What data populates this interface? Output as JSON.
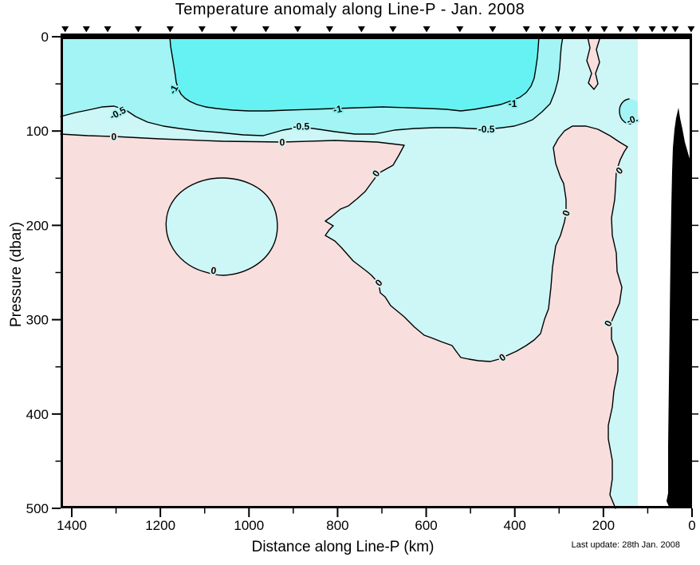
{
  "title": "Temperature anomaly along Line-P - Jan. 2008",
  "footnote": "Last update: 28th Jan. 2008",
  "axes": {
    "x": {
      "label": "Distance along Line-P (km)",
      "major_ticks": [
        1400,
        1200,
        1000,
        800,
        600,
        400,
        200,
        0
      ],
      "minor_ticks": [
        1300,
        1100,
        900,
        700,
        500,
        300,
        100
      ],
      "range": [
        1425,
        0
      ],
      "direction": "reversed"
    },
    "y": {
      "label": "Pressure (dbar)",
      "major_ticks": [
        0,
        100,
        200,
        300,
        400,
        500
      ],
      "minor_ticks": [
        50,
        150,
        250,
        350,
        450
      ],
      "range": [
        0,
        500
      ],
      "direction": "increasing downward"
    },
    "y_right": {
      "minor_ticks": [
        50,
        100,
        150,
        200,
        250,
        300,
        350,
        400,
        450
      ]
    }
  },
  "stations": {
    "marker": "filled-down-triangle",
    "positions_km": [
      1415,
      1367,
      1319,
      1250,
      1178,
      1106,
      1034,
      962,
      890,
      818,
      746,
      675,
      599,
      524,
      450,
      374,
      338,
      302,
      270,
      234,
      198,
      162,
      126,
      90,
      63,
      38,
      2
    ]
  },
  "chart_data": {
    "type": "contour",
    "title": "Temperature anomaly along Line-P - Jan. 2008",
    "xlabel": "Distance along Line-P (km)",
    "ylabel": "Pressure (dbar)",
    "xlim": [
      1425,
      0
    ],
    "ylim": [
      500,
      0
    ],
    "grid": false,
    "contour_levels": [
      -1,
      -0.5,
      0
    ],
    "fill_bands": [
      {
        "range": "anomaly < -1",
        "color": "#66F2F2",
        "description": "cold core in upper ~75 dbar between ~1180 km and ~345 km"
      },
      {
        "range": "-1 to -0.5",
        "color": "#A3F4F4",
        "description": "band around cold core; reaches surface from 1425-1180 km and 345-290 km; small lens at ~135 km / 70-95 dbar"
      },
      {
        "range": "-0.5 to 0",
        "color": "#CDF6F6",
        "description": "pale cool layer ~80-110 dbar along whole section; mid-depth pool ~830-320 km down to ~345 dbar; eddy at ~1080 km / 195-255 dbar; nearshore strip ~160-120 km full depth"
      },
      {
        "range": "anomaly > 0",
        "color": "#F9DEDE",
        "description": "warm anomaly below ~110 dbar over most of the section; warm column ~310-150 km from ~100 dbar to bottom; warm surface finger at ~235 km / 0-55 dbar"
      }
    ],
    "contour_labels": [
      {
        "text": "-1",
        "km": 1170,
        "dbar": 56,
        "rot": -62,
        "halo": "#80F2F2"
      },
      {
        "text": "-0.5",
        "km": 1296,
        "dbar": 81,
        "rot": -28,
        "halo": "#AEF4F4"
      },
      {
        "text": "0",
        "km": 1305,
        "dbar": 106,
        "rot": 0,
        "halo": "#DCEDEA"
      },
      {
        "text": "-1",
        "km": 800,
        "dbar": 77,
        "rot": -12,
        "halo": "#80F2F2"
      },
      {
        "text": "-0.5",
        "km": 882,
        "dbar": 95,
        "rot": 0,
        "halo": "#B5F5F5"
      },
      {
        "text": "0",
        "km": 925,
        "dbar": 112,
        "rot": 0,
        "halo": "#DCEDEA"
      },
      {
        "text": "-1",
        "km": 405,
        "dbar": 71,
        "rot": 0,
        "halo": "#80F2F2"
      },
      {
        "text": "-0.5",
        "km": 464,
        "dbar": 98,
        "rot": 0,
        "halo": "#B5F5F5"
      },
      {
        "text": "0",
        "km": 713,
        "dbar": 145,
        "rot": -55,
        "halo": "#DCEDEA"
      },
      {
        "text": "0",
        "km": 1080,
        "dbar": 248,
        "rot": 8,
        "halo": "#DCEDEA"
      },
      {
        "text": "0",
        "km": 707,
        "dbar": 261,
        "rot": -48,
        "halo": "#DCEDEA"
      },
      {
        "text": "0",
        "km": 428,
        "dbar": 340,
        "rot": -35,
        "halo": "#DCEDEA"
      },
      {
        "text": "0",
        "km": 284,
        "dbar": 187,
        "rot": -68,
        "halo": "#DCEDEA"
      },
      {
        "text": "0",
        "km": 164,
        "dbar": 142,
        "rot": -45,
        "halo": "#DCEDEA"
      },
      {
        "text": "0",
        "km": 189,
        "dbar": 304,
        "rot": -65,
        "halo": "#DCEDEA"
      },
      {
        "text": "-0.",
        "km": 135,
        "dbar": 88,
        "rot": -20,
        "halo": "#B5F5F5"
      }
    ],
    "bathymetry": "black seafloor/coast mask from ~50 km to 0 km, from ~75 dbar to 500 dbar; no data (white) between ~120 km and coast"
  },
  "colors": {
    "coldest": "#66F2F2",
    "cold": "#A3F4F4",
    "cool": "#CDF6F6",
    "warm": "#F9DEDE",
    "contour_line": "#000000",
    "frame": "#000000",
    "bathymetry": "#000000",
    "background": "#ffffff"
  }
}
